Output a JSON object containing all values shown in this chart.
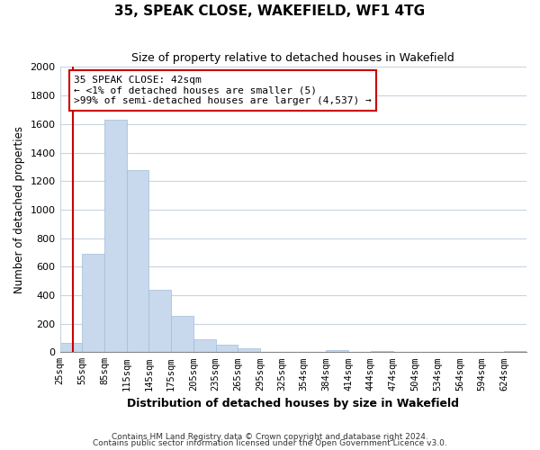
{
  "title": "35, SPEAK CLOSE, WAKEFIELD, WF1 4TG",
  "subtitle": "Size of property relative to detached houses in Wakefield",
  "xlabel": "Distribution of detached houses by size in Wakefield",
  "ylabel": "Number of detached properties",
  "bar_color": "#c8d8ed",
  "bar_edge_color": "#a0bcd8",
  "categories": [
    "25sqm",
    "55sqm",
    "85sqm",
    "115sqm",
    "145sqm",
    "175sqm",
    "205sqm",
    "235sqm",
    "265sqm",
    "295sqm",
    "325sqm",
    "354sqm",
    "384sqm",
    "414sqm",
    "444sqm",
    "474sqm",
    "504sqm",
    "534sqm",
    "564sqm",
    "594sqm",
    "624sqm"
  ],
  "values": [
    65,
    690,
    1630,
    1280,
    440,
    255,
    90,
    50,
    30,
    0,
    0,
    0,
    15,
    0,
    10,
    0,
    0,
    0,
    0,
    0,
    10
  ],
  "ylim": [
    0,
    2000
  ],
  "yticks": [
    0,
    200,
    400,
    600,
    800,
    1000,
    1200,
    1400,
    1600,
    1800,
    2000
  ],
  "annotation_title": "35 SPEAK CLOSE: 42sqm",
  "annotation_line2": "← <1% of detached houses are smaller (5)",
  "annotation_line3": ">99% of semi-detached houses are larger (4,537) →",
  "annotation_box_color": "#ffffff",
  "annotation_box_edge": "#cc0000",
  "property_line_color": "#cc0000",
  "footnote1": "Contains HM Land Registry data © Crown copyright and database right 2024.",
  "footnote2": "Contains public sector information licensed under the Open Government Licence v3.0.",
  "background_color": "#ffffff",
  "grid_color": "#c8d4e0"
}
